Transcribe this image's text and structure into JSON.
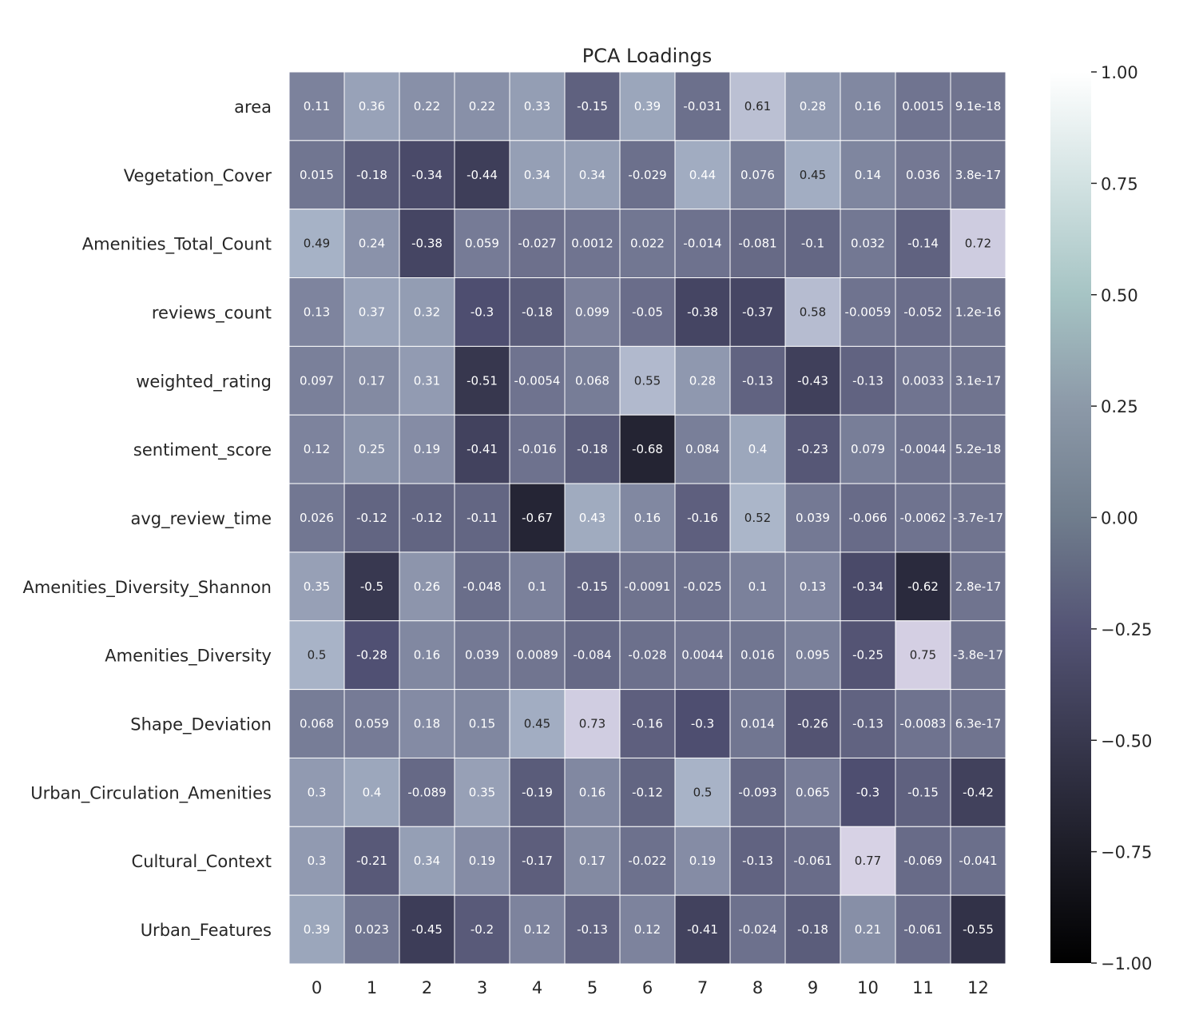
{
  "chart_data": {
    "type": "heatmap",
    "title": "PCA Loadings",
    "xlabel": "",
    "ylabel": "",
    "x_categories": [
      "0",
      "1",
      "2",
      "3",
      "4",
      "5",
      "6",
      "7",
      "8",
      "9",
      "10",
      "11",
      "12"
    ],
    "y_categories": [
      "area",
      "Vegetation_Cover",
      "Amenities_Total_Count",
      "reviews_count",
      "weighted_rating",
      "sentiment_score",
      "avg_review_time",
      "Amenities_Diversity_Shannon",
      "Amenities_Diversity",
      "Shape_Deviation",
      "Urban_Circulation_Amenities",
      "Cultural_Context",
      "Urban_Features"
    ],
    "values": [
      [
        0.11,
        0.36,
        0.22,
        0.22,
        0.33,
        -0.15,
        0.39,
        -0.031,
        0.61,
        0.28,
        0.16,
        0.0015,
        9.1e-18
      ],
      [
        0.015,
        -0.18,
        -0.34,
        -0.44,
        0.34,
        0.34,
        -0.029,
        0.44,
        0.076,
        0.45,
        0.14,
        0.036,
        3.8e-17
      ],
      [
        0.49,
        0.24,
        -0.38,
        0.059,
        -0.027,
        0.0012,
        0.022,
        -0.014,
        -0.081,
        -0.1,
        0.032,
        -0.14,
        0.72
      ],
      [
        0.13,
        0.37,
        0.32,
        -0.3,
        -0.18,
        0.099,
        -0.05,
        -0.38,
        -0.37,
        0.58,
        -0.0059,
        -0.052,
        1.2e-16
      ],
      [
        0.097,
        0.17,
        0.31,
        -0.51,
        -0.0054,
        0.068,
        0.55,
        0.28,
        -0.13,
        -0.43,
        -0.13,
        0.0033,
        3.1e-17
      ],
      [
        0.12,
        0.25,
        0.19,
        -0.41,
        -0.016,
        -0.18,
        -0.68,
        0.084,
        0.4,
        -0.23,
        0.079,
        -0.0044,
        5.2e-18
      ],
      [
        0.026,
        -0.12,
        -0.12,
        -0.11,
        -0.67,
        0.43,
        0.16,
        -0.16,
        0.52,
        0.039,
        -0.066,
        -0.0062,
        -3.7e-17
      ],
      [
        0.35,
        -0.5,
        0.26,
        -0.048,
        0.1,
        -0.15,
        -0.0091,
        -0.025,
        0.1,
        0.13,
        -0.34,
        -0.62,
        2.8e-17
      ],
      [
        0.5,
        -0.28,
        0.16,
        0.039,
        0.0089,
        -0.084,
        -0.028,
        0.0044,
        0.016,
        0.095,
        -0.25,
        0.75,
        -3.8e-17
      ],
      [
        0.068,
        0.059,
        0.18,
        0.15,
        0.45,
        0.73,
        -0.16,
        -0.3,
        0.014,
        -0.26,
        -0.13,
        -0.0083,
        6.3e-17
      ],
      [
        0.3,
        0.4,
        -0.089,
        0.35,
        -0.19,
        0.16,
        -0.12,
        0.5,
        -0.093,
        0.065,
        -0.3,
        -0.15,
        -0.42
      ],
      [
        0.3,
        -0.21,
        0.34,
        0.19,
        -0.17,
        0.17,
        -0.022,
        0.19,
        -0.13,
        -0.061,
        0.77,
        -0.069,
        -0.041
      ],
      [
        0.39,
        0.023,
        -0.45,
        -0.2,
        0.12,
        -0.13,
        0.12,
        -0.41,
        -0.024,
        -0.18,
        0.21,
        -0.061,
        -0.55
      ]
    ],
    "annotations": [
      [
        "0.11",
        "0.36",
        "0.22",
        "0.22",
        "0.33",
        "-0.15",
        "0.39",
        "-0.031",
        "0.61",
        "0.28",
        "0.16",
        "0.0015",
        "9.1e-18"
      ],
      [
        "0.015",
        "-0.18",
        "-0.34",
        "-0.44",
        "0.34",
        "0.34",
        "-0.029",
        "0.44",
        "0.076",
        "0.45",
        "0.14",
        "0.036",
        "3.8e-17"
      ],
      [
        "0.49",
        "0.24",
        "-0.38",
        "0.059",
        "-0.027",
        "0.0012",
        "0.022",
        "-0.014",
        "-0.081",
        "-0.1",
        "0.032",
        "-0.14",
        "0.72"
      ],
      [
        "0.13",
        "0.37",
        "0.32",
        "-0.3",
        "-0.18",
        "0.099",
        "-0.05",
        "-0.38",
        "-0.37",
        "0.58",
        "-0.0059",
        "-0.052",
        "1.2e-16"
      ],
      [
        "0.097",
        "0.17",
        "0.31",
        "-0.51",
        "-0.0054",
        "0.068",
        "0.55",
        "0.28",
        "-0.13",
        "-0.43",
        "-0.13",
        "0.0033",
        "3.1e-17"
      ],
      [
        "0.12",
        "0.25",
        "0.19",
        "-0.41",
        "-0.016",
        "-0.18",
        "-0.68",
        "0.084",
        "0.4",
        "-0.23",
        "0.079",
        "-0.0044",
        "5.2e-18"
      ],
      [
        "0.026",
        "-0.12",
        "-0.12",
        "-0.11",
        "-0.67",
        "0.43",
        "0.16",
        "-0.16",
        "0.52",
        "0.039",
        "-0.066",
        "-0.0062",
        "-3.7e-17"
      ],
      [
        "0.35",
        "-0.5",
        "0.26",
        "-0.048",
        "0.1",
        "-0.15",
        "-0.0091",
        "-0.025",
        "0.1",
        "0.13",
        "-0.34",
        "-0.62",
        "2.8e-17"
      ],
      [
        "0.5",
        "-0.28",
        "0.16",
        "0.039",
        "0.0089",
        "-0.084",
        "-0.028",
        "0.0044",
        "0.016",
        "0.095",
        "-0.25",
        "0.75",
        "-3.8e-17"
      ],
      [
        "0.068",
        "0.059",
        "0.18",
        "0.15",
        "0.45",
        "0.73",
        "-0.16",
        "-0.3",
        "0.014",
        "-0.26",
        "-0.13",
        "-0.0083",
        "6.3e-17"
      ],
      [
        "0.3",
        "0.4",
        "-0.089",
        "0.35",
        "-0.19",
        "0.16",
        "-0.12",
        "0.5",
        "-0.093",
        "0.065",
        "-0.3",
        "-0.15",
        "-0.42"
      ],
      [
        "0.3",
        "-0.21",
        "0.34",
        "0.19",
        "-0.17",
        "0.17",
        "-0.022",
        "0.19",
        "-0.13",
        "-0.061",
        "0.77",
        "-0.069",
        "-0.041"
      ],
      [
        "0.39",
        "0.023",
        "-0.45",
        "-0.2",
        "0.12",
        "-0.13",
        "0.12",
        "-0.41",
        "-0.024",
        "-0.18",
        "0.21",
        "-0.061",
        "-0.55"
      ]
    ],
    "colormap": "bone",
    "vmin": -1.0,
    "vmax": 1.0,
    "colorbar_ticks": [
      1.0,
      0.75,
      0.5,
      0.25,
      0.0,
      -0.25,
      -0.5,
      -0.75,
      -1.0
    ],
    "colorbar_tick_labels": [
      "1.00",
      "0.75",
      "0.50",
      "0.25",
      "0.00",
      "−0.25",
      "−0.50",
      "−0.75",
      "−1.00"
    ],
    "legend_position": "right",
    "grid": false
  }
}
